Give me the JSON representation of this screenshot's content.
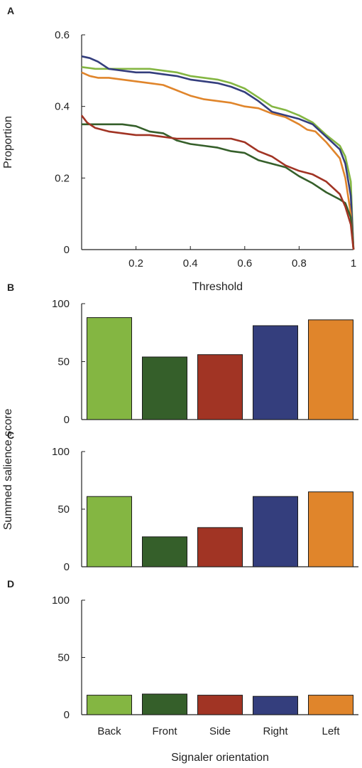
{
  "colors": {
    "back": "#84b642",
    "front": "#355f2a",
    "side": "#a13424",
    "right": "#343e7d",
    "left": "#e0852b",
    "axis": "#222222"
  },
  "shared": {
    "ylabel_bcd": "Summed salience score",
    "xlabel_bcd": "Signaler orientation",
    "categories": [
      "Back",
      "Front",
      "Side",
      "Right",
      "Left"
    ]
  },
  "chart_data": [
    {
      "panel": "A",
      "type": "line",
      "xlabel": "Threshold",
      "ylabel": "Proportion",
      "xlim": [
        0,
        1
      ],
      "ylim": [
        0,
        0.6
      ],
      "xticks": [
        "0.2",
        "0.4",
        "0.6",
        "0.8",
        "1"
      ],
      "yticks": [
        "0",
        "0.2",
        "0.4",
        "0.6"
      ],
      "grid": false,
      "series": [
        {
          "color": "#84b642",
          "x": [
            0,
            0.05,
            0.1,
            0.15,
            0.2,
            0.25,
            0.3,
            0.35,
            0.4,
            0.45,
            0.5,
            0.55,
            0.6,
            0.65,
            0.7,
            0.75,
            0.8,
            0.85,
            0.9,
            0.95,
            0.97,
            0.99,
            1
          ],
          "y": [
            0.51,
            0.505,
            0.505,
            0.505,
            0.505,
            0.505,
            0.5,
            0.495,
            0.485,
            0.48,
            0.475,
            0.465,
            0.45,
            0.425,
            0.4,
            0.39,
            0.375,
            0.355,
            0.32,
            0.29,
            0.26,
            0.19,
            0
          ]
        },
        {
          "color": "#343e7d",
          "x": [
            0,
            0.03,
            0.06,
            0.1,
            0.15,
            0.2,
            0.25,
            0.3,
            0.35,
            0.4,
            0.45,
            0.5,
            0.55,
            0.6,
            0.65,
            0.7,
            0.75,
            0.8,
            0.85,
            0.9,
            0.95,
            0.97,
            0.99,
            1
          ],
          "y": [
            0.54,
            0.535,
            0.525,
            0.505,
            0.5,
            0.495,
            0.495,
            0.49,
            0.485,
            0.475,
            0.47,
            0.465,
            0.455,
            0.44,
            0.415,
            0.385,
            0.375,
            0.365,
            0.35,
            0.315,
            0.28,
            0.24,
            0.15,
            0
          ]
        },
        {
          "color": "#e0852b",
          "x": [
            0,
            0.03,
            0.06,
            0.1,
            0.15,
            0.2,
            0.25,
            0.3,
            0.35,
            0.4,
            0.45,
            0.5,
            0.55,
            0.6,
            0.65,
            0.7,
            0.75,
            0.8,
            0.83,
            0.86,
            0.9,
            0.95,
            0.97,
            0.99,
            1
          ],
          "y": [
            0.495,
            0.485,
            0.48,
            0.48,
            0.475,
            0.47,
            0.465,
            0.46,
            0.445,
            0.43,
            0.42,
            0.415,
            0.41,
            0.4,
            0.395,
            0.38,
            0.37,
            0.35,
            0.335,
            0.33,
            0.3,
            0.255,
            0.2,
            0.1,
            0
          ]
        },
        {
          "color": "#355f2a",
          "x": [
            0,
            0.05,
            0.1,
            0.15,
            0.2,
            0.25,
            0.3,
            0.35,
            0.4,
            0.45,
            0.5,
            0.55,
            0.6,
            0.65,
            0.7,
            0.75,
            0.8,
            0.85,
            0.9,
            0.95,
            0.97,
            0.99,
            1
          ],
          "y": [
            0.35,
            0.35,
            0.35,
            0.35,
            0.345,
            0.33,
            0.325,
            0.305,
            0.295,
            0.29,
            0.285,
            0.275,
            0.27,
            0.25,
            0.24,
            0.23,
            0.205,
            0.185,
            0.16,
            0.14,
            0.13,
            0.09,
            0
          ]
        },
        {
          "color": "#a13424",
          "x": [
            0,
            0.02,
            0.05,
            0.1,
            0.15,
            0.2,
            0.25,
            0.3,
            0.35,
            0.4,
            0.45,
            0.5,
            0.55,
            0.6,
            0.65,
            0.7,
            0.75,
            0.8,
            0.85,
            0.9,
            0.95,
            0.97,
            0.99,
            1
          ],
          "y": [
            0.375,
            0.355,
            0.34,
            0.33,
            0.325,
            0.32,
            0.32,
            0.315,
            0.31,
            0.31,
            0.31,
            0.31,
            0.31,
            0.3,
            0.275,
            0.26,
            0.235,
            0.22,
            0.21,
            0.19,
            0.155,
            0.12,
            0.07,
            0
          ]
        }
      ]
    },
    {
      "panel": "B",
      "type": "bar",
      "ylim": [
        0,
        100
      ],
      "yticks": [
        "0",
        "50",
        "100"
      ],
      "values": [
        88,
        54,
        56,
        81,
        86
      ]
    },
    {
      "panel": "C",
      "type": "bar",
      "ylim": [
        0,
        100
      ],
      "yticks": [
        "0",
        "50",
        "100"
      ],
      "values": [
        61,
        26,
        34,
        61,
        65
      ]
    },
    {
      "panel": "D",
      "type": "bar",
      "ylim": [
        0,
        100
      ],
      "yticks": [
        "0",
        "50",
        "100"
      ],
      "values": [
        17,
        18,
        17,
        16,
        17
      ]
    }
  ]
}
